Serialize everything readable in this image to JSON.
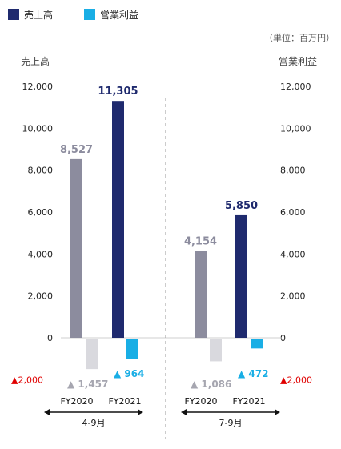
{
  "legend": [
    {
      "label": "売上高",
      "color": "#1f2a6e"
    },
    {
      "label": "営業利益",
      "color": "#19aee5"
    }
  ],
  "unit_note": "（単位：百万円）",
  "left_axis_title": "売上高",
  "right_axis_title": "営業利益",
  "colors": {
    "sales_fy2020": "#8c8c9e",
    "sales_fy2021": "#1f2a6e",
    "op_fy2020": "#d9d9de",
    "op_fy2021": "#19aee5",
    "negative_mark": "#e00000"
  },
  "chart_data": {
    "type": "bar",
    "left_axis": {
      "title": "売上高",
      "ticks": [
        "12,000",
        "10,000",
        "8,000",
        "6,000",
        "4,000",
        "2,000",
        "0"
      ],
      "ylim": [
        0,
        12000
      ]
    },
    "right_axis": {
      "title": "営業利益",
      "ticks": [
        "12,000",
        "10,000",
        "8,000",
        "6,000",
        "4,000",
        "2,000",
        "0"
      ],
      "negative_tick": "▲2,000"
    },
    "negative_tick_label": "▲2,000",
    "groups": [
      {
        "period": "4-9月",
        "categories": [
          "FY2020",
          "FY2021"
        ],
        "sales": [
          8527,
          11305
        ],
        "sales_labels": [
          "8,527",
          "11,305"
        ],
        "operating_income": [
          -1457,
          -964
        ],
        "operating_income_labels": [
          "▲ 1,457",
          "▲ 964"
        ]
      },
      {
        "period": "7-9月",
        "categories": [
          "FY2020",
          "FY2021"
        ],
        "sales": [
          4154,
          5850
        ],
        "sales_labels": [
          "4,154",
          "5,850"
        ],
        "operating_income": [
          -1086,
          -472
        ],
        "operating_income_labels": [
          "▲ 1,086",
          "▲ 472"
        ]
      }
    ]
  }
}
